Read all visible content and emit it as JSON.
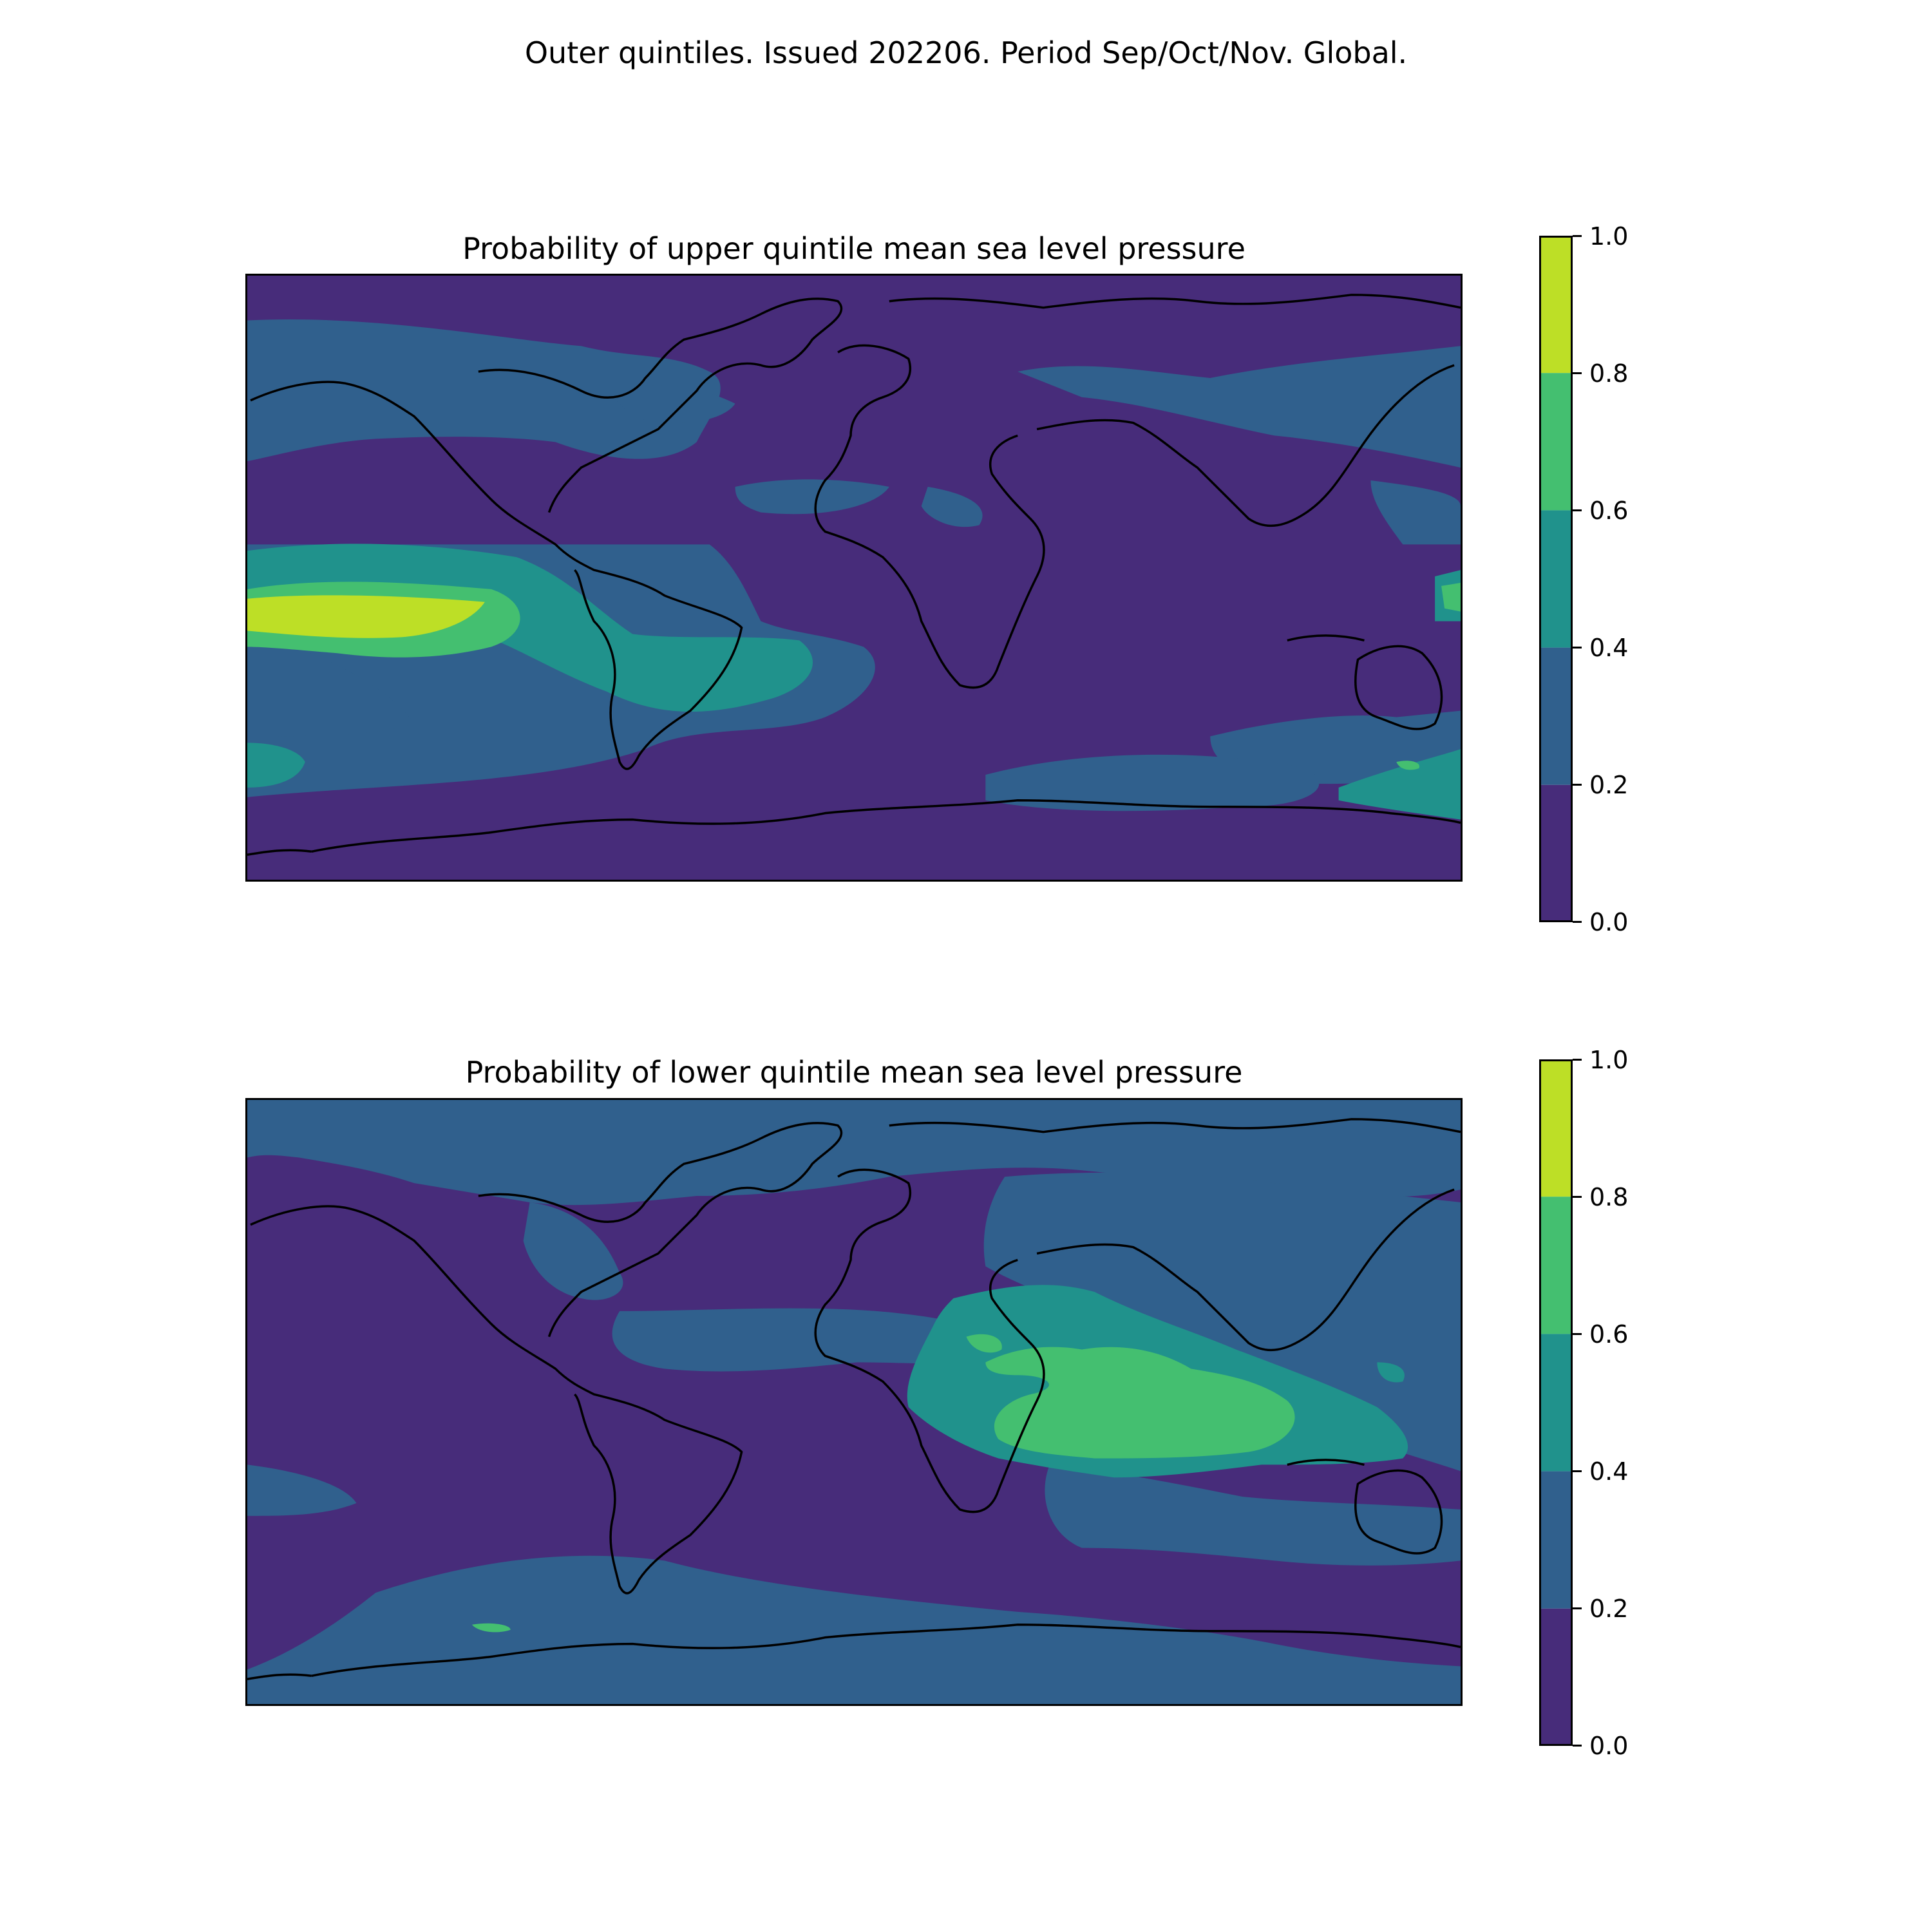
{
  "suptitle": "Outer quintiles. Issued 202206. Period Sep/Oct/Nov. Global.",
  "panels": [
    {
      "title": "Probability of upper quintile mean sea level pressure"
    },
    {
      "title": "Probability of lower quintile mean sea level pressure"
    }
  ],
  "colorbar": {
    "ticks": [
      "0.0",
      "0.2",
      "0.4",
      "0.6",
      "0.8",
      "1.0"
    ],
    "colors": [
      "#472c7a",
      "#30608d",
      "#20928c",
      "#44bf70",
      "#bddf26"
    ]
  },
  "chart_data": [
    {
      "type": "heatmap",
      "title": "Probability of upper quintile mean sea level pressure",
      "levels": [
        0.0,
        0.2,
        0.4,
        0.6,
        0.8,
        1.0
      ],
      "colorbar_ticks": [
        0.0,
        0.2,
        0.4,
        0.6,
        0.8,
        1.0
      ],
      "projection": "global equirectangular with coastlines",
      "dominant_class": "0.0-0.2",
      "features": [
        {
          "region": "tropical eastern Pacific",
          "class": "0.8-1.0"
        },
        {
          "region": "central/eastern tropical Pacific band",
          "class": "0.6-0.8"
        },
        {
          "region": "South Atlantic / southern South America",
          "class": "0.4-0.6"
        },
        {
          "region": "southwest Pacific near New Zealand",
          "class": "0.4-0.6"
        },
        {
          "region": "North Pacific, North Atlantic, Southern Ocean patches",
          "class": "0.2-0.4"
        }
      ]
    },
    {
      "type": "heatmap",
      "title": "Probability of lower quintile mean sea level pressure",
      "levels": [
        0.0,
        0.2,
        0.4,
        0.6,
        0.8,
        1.0
      ],
      "colorbar_ticks": [
        0.0,
        0.2,
        0.4,
        0.6,
        0.8,
        1.0
      ],
      "projection": "global equirectangular with coastlines",
      "dominant_class": "0.0-0.2",
      "features": [
        {
          "region": "Indian Ocean / Maritime Continent",
          "class": "0.6-0.8"
        },
        {
          "region": "East Africa, Arabian Sea, surrounding Indian Ocean",
          "class": "0.4-0.6"
        },
        {
          "region": "Eurasia, Arctic, Australia, Antarctic coast",
          "class": "0.2-0.4"
        }
      ]
    }
  ]
}
